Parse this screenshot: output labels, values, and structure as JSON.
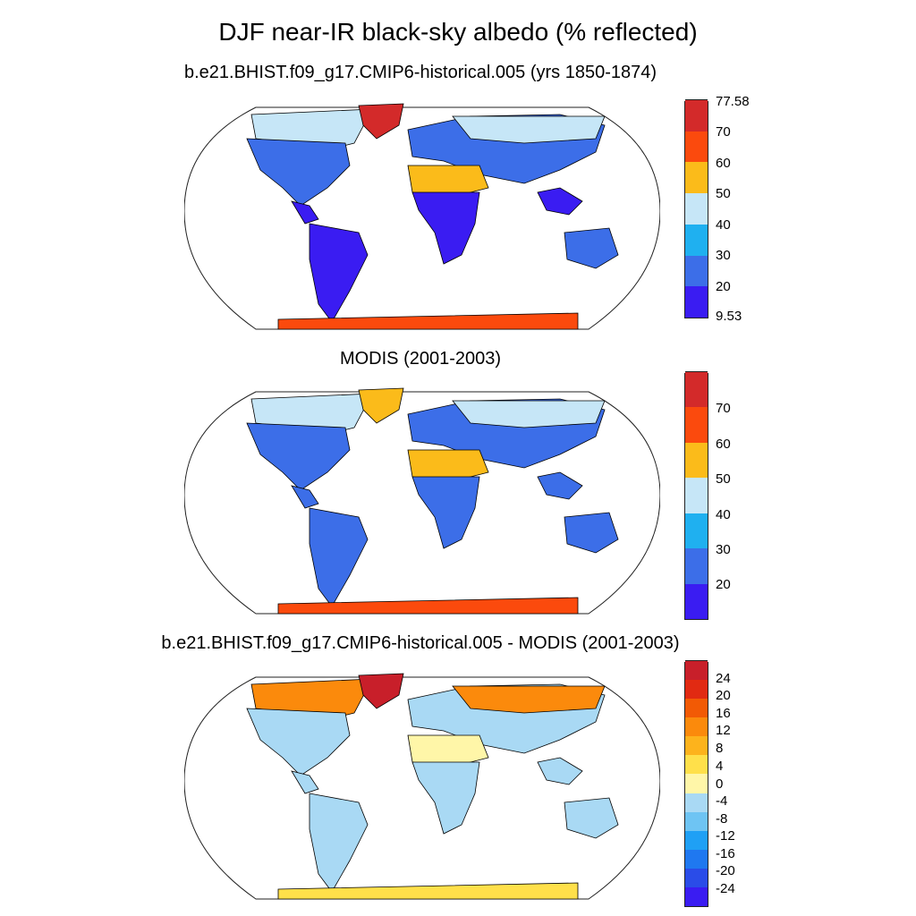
{
  "title": "DJF near-IR black-sky albedo (% reflected)",
  "panels": [
    {
      "id": "model",
      "title": "b.e21.BHIST.f09_g17.CMIP6-historical.005 (yrs 1850-1874)",
      "colorbar": {
        "colors": [
          "#3a1cf2",
          "#3c6ee8",
          "#1fb0f0",
          "#c6e6f7",
          "#fbbb1a",
          "#fb4a0d",
          "#d32a2a"
        ],
        "labels": [
          "77.58",
          "70",
          "60",
          "50",
          "40",
          "30",
          "20",
          "9.53"
        ]
      }
    },
    {
      "id": "obs",
      "title": "MODIS (2001-2003)",
      "colorbar": {
        "colors": [
          "#3a1cf2",
          "#3c6ee8",
          "#1fb0f0",
          "#c6e6f7",
          "#fbbb1a",
          "#fb4a0d",
          "#d32a2a"
        ],
        "labels": [
          "70",
          "60",
          "50",
          "40",
          "30",
          "20"
        ]
      }
    },
    {
      "id": "diff",
      "title": "b.e21.BHIST.f09_g17.CMIP6-historical.005 - MODIS (2001-2003)",
      "colorbar": {
        "colors": [
          "#3a1cf2",
          "#2a4ce8",
          "#1f78f0",
          "#1fa0f5",
          "#6ec4f3",
          "#a9d9f4",
          "#fff6a8",
          "#ffe04a",
          "#fdb31c",
          "#fb8a0c",
          "#f25a05",
          "#e12a12",
          "#c81f2a"
        ],
        "labels": [
          "24",
          "20",
          "16",
          "12",
          "8",
          "4",
          "0",
          "-4",
          "-8",
          "-12",
          "-16",
          "-20",
          "-24"
        ]
      }
    }
  ],
  "colors": {
    "ocean": "#ffffff",
    "coastline": "#000000",
    "model_land": {
      "tropics": "#3a1cf2",
      "midlat": "#3c6ee8",
      "desert": "#fbbb1a",
      "highlat": "#c6e6f7",
      "ice": "#fb4a0d",
      "greenland": "#d32a2a"
    },
    "obs_land": {
      "tropics": "#3c6ee8",
      "midlat": "#3c6ee8",
      "desert": "#fbbb1a",
      "highlat": "#c6e6f7",
      "ice": "#fb4a0d",
      "greenland": "#fbbb1a"
    },
    "diff_land": {
      "tropics": "#a9d9f4",
      "midlat": "#a9d9f4",
      "desert": "#fff6a8",
      "highlat": "#fb8a0c",
      "ice": "#ffe04a",
      "greenland": "#c81f2a"
    }
  }
}
